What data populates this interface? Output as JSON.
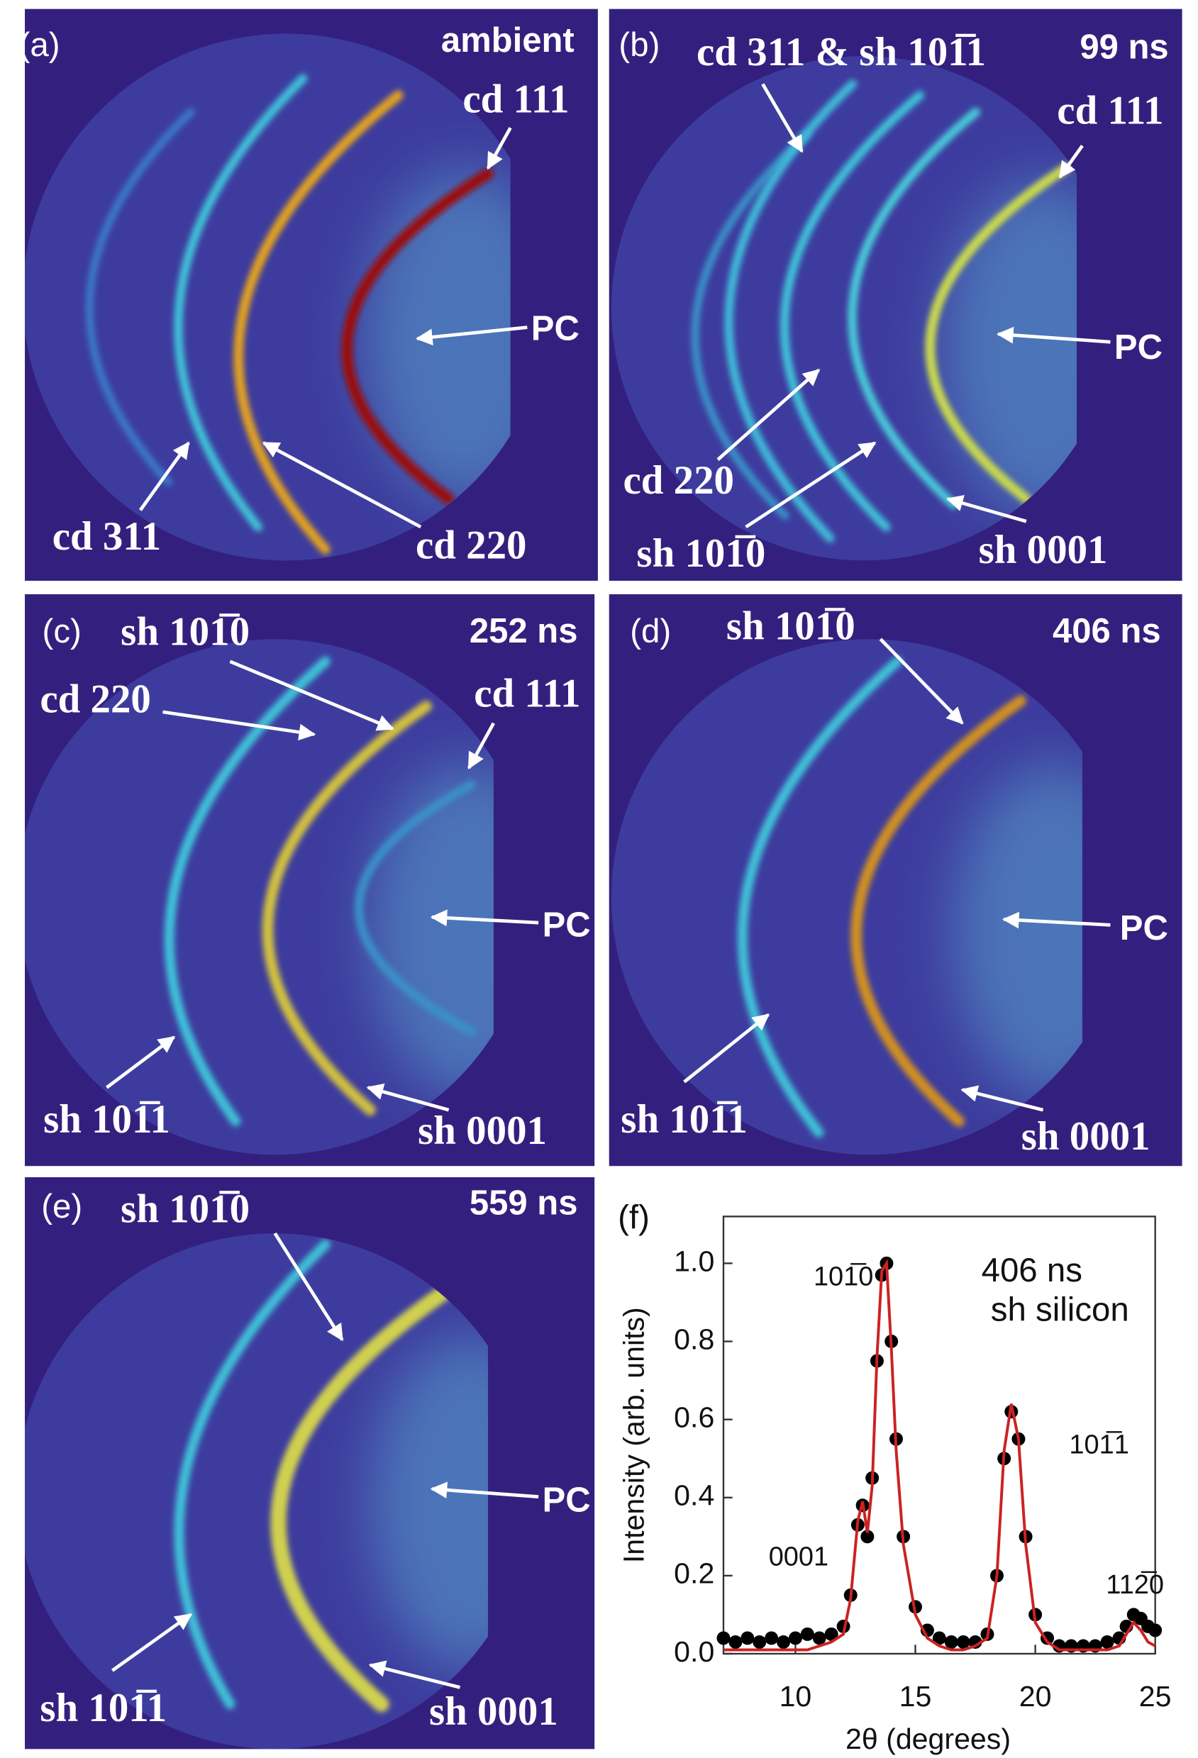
{
  "panels": [
    {
      "label": "(a)",
      "time": "ambient",
      "annotations": [
        "cd 111",
        "PC",
        "cd 311",
        "cd 220"
      ]
    },
    {
      "label": "(b)",
      "time": "99 ns",
      "annotations": [
        "cd 311 & sh 101̅1",
        "cd 111",
        "PC",
        "cd 220",
        "sh 101̅0",
        "sh 0001"
      ]
    },
    {
      "label": "(c)",
      "time": "252 ns",
      "annotations": [
        "sh 101̅0",
        "cd 220",
        "cd 111",
        "PC",
        "sh 101̅1",
        "sh 0001"
      ]
    },
    {
      "label": "(d)",
      "time": "406 ns",
      "annotations": [
        "sh 101̅0",
        "PC",
        "sh 101̅1",
        "sh 0001"
      ]
    },
    {
      "label": "(e)",
      "time": "559 ns",
      "annotations": [
        "sh 101̅0",
        "PC",
        "sh 101̅1",
        "sh 0001"
      ]
    }
  ],
  "chart_data": {
    "type": "scatter",
    "panel_label": "(f)",
    "x_label": "2θ (degrees)",
    "y_label": "Intensity (arb. units)",
    "x": [
      7,
      7.5,
      8,
      8.5,
      9,
      9.5,
      10,
      10.5,
      11,
      11.5,
      12,
      12.3,
      12.6,
      12.8,
      13.0,
      13.2,
      13.4,
      13.6,
      13.8,
      14.0,
      14.2,
      14.5,
      15,
      15.5,
      16,
      16.5,
      17,
      17.5,
      18,
      18.4,
      18.7,
      19.0,
      19.3,
      19.6,
      20,
      20.5,
      21,
      21.5,
      22,
      22.5,
      23,
      23.5,
      23.8,
      24.1,
      24.4,
      24.7,
      25
    ],
    "series": [
      {
        "color": "#000000",
        "values": [
          0.04,
          0.03,
          0.04,
          0.03,
          0.04,
          0.03,
          0.04,
          0.05,
          0.04,
          0.05,
          0.07,
          0.15,
          0.33,
          0.38,
          0.3,
          0.45,
          0.75,
          0.97,
          1.0,
          0.8,
          0.55,
          0.3,
          0.12,
          0.06,
          0.04,
          0.03,
          0.03,
          0.03,
          0.05,
          0.2,
          0.5,
          0.62,
          0.55,
          0.3,
          0.1,
          0.04,
          0.02,
          0.02,
          0.02,
          0.02,
          0.03,
          0.04,
          0.07,
          0.1,
          0.09,
          0.07,
          0.06
        ]
      },
      {
        "color": "#cc2222",
        "style": "line",
        "values": [
          0.01,
          0.01,
          0.01,
          0.01,
          0.01,
          0.01,
          0.01,
          0.01,
          0.02,
          0.03,
          0.05,
          0.14,
          0.34,
          0.39,
          0.31,
          0.43,
          0.76,
          0.98,
          1.0,
          0.78,
          0.52,
          0.28,
          0.1,
          0.04,
          0.02,
          0.01,
          0.01,
          0.02,
          0.04,
          0.2,
          0.52,
          0.64,
          0.55,
          0.28,
          0.08,
          0.03,
          0.01,
          0.01,
          0.01,
          0.01,
          0.01,
          0.02,
          0.05,
          0.08,
          0.06,
          0.03,
          0.02
        ]
      }
    ],
    "xlim": [
      7,
      25
    ],
    "ylim": [
      0,
      1.12
    ],
    "xticks": [
      10,
      15,
      20,
      25
    ],
    "yticks": [
      {
        "value": 0,
        "label": "0.0"
      },
      {
        "value": 0.2,
        "label": "0.2"
      },
      {
        "value": 0.4,
        "label": "0.4"
      },
      {
        "value": 0.6,
        "label": "0.6"
      },
      {
        "value": 0.8,
        "label": "0.8"
      },
      {
        "value": 1.0,
        "label": "1.0"
      }
    ],
    "annotations": [
      "406 ns",
      "sh silicon",
      "101̅0",
      "0001",
      "101̅1",
      "112̅0"
    ]
  }
}
